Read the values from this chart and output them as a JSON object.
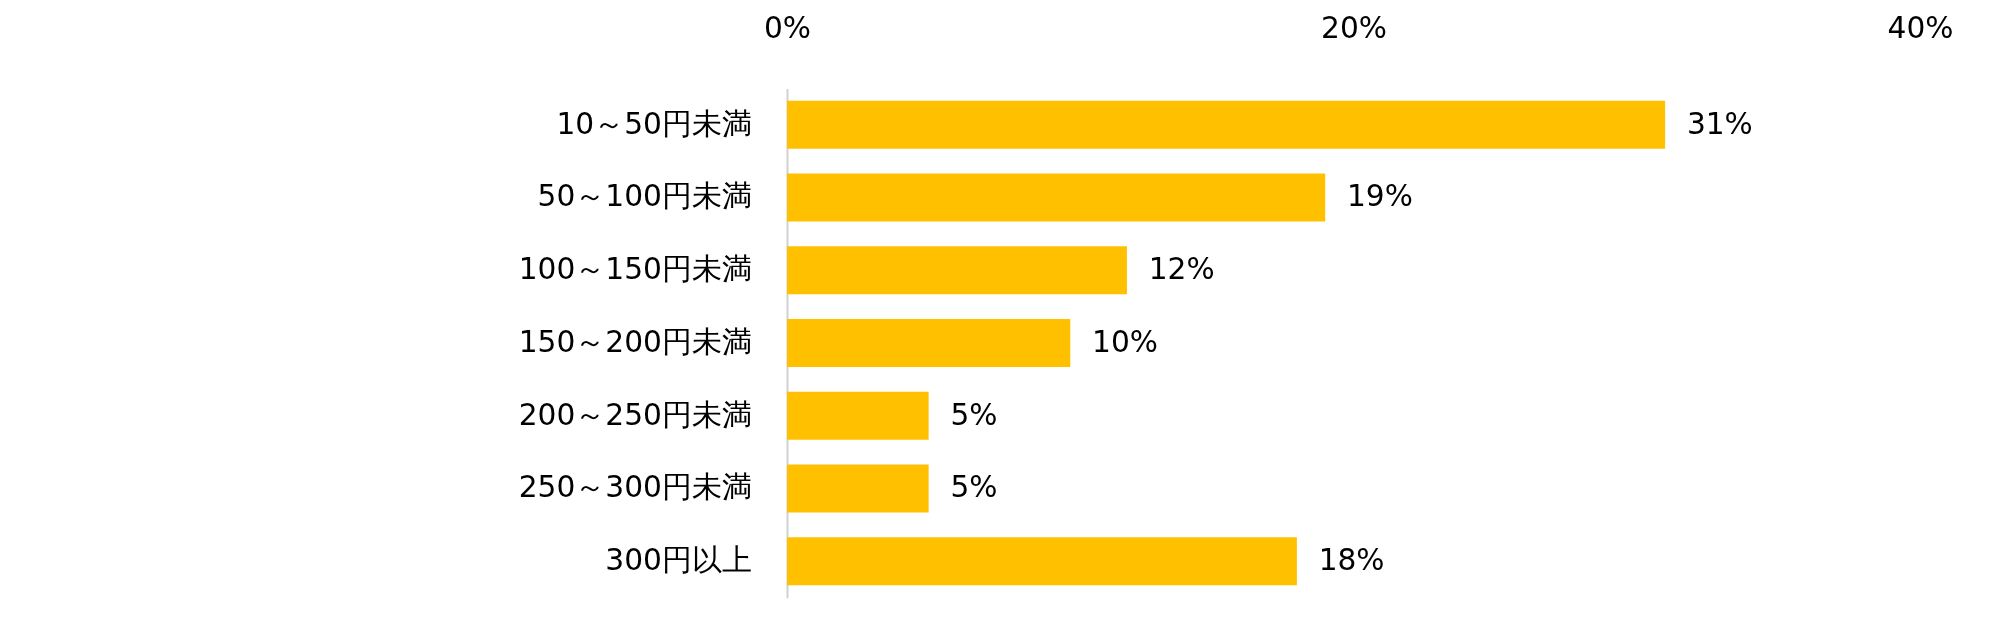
{
  "chart_data": {
    "type": "bar",
    "orientation": "horizontal",
    "categories": [
      "10～50円未満",
      "50～100円未満",
      "100～150円未満",
      "150～200円未満",
      "200～250円未満",
      "250～300円未満",
      "300円以上"
    ],
    "values": [
      31,
      19,
      12,
      10,
      5,
      5,
      18
    ],
    "value_labels": [
      "31%",
      "19%",
      "12%",
      "10%",
      "5%",
      "5%",
      "18%"
    ],
    "color": "#ffc000",
    "xlim": [
      0,
      40
    ],
    "xticks": [
      {
        "value": 0,
        "label": "0%"
      },
      {
        "value": 20,
        "label": "20%"
      },
      {
        "value": 40,
        "label": "40%"
      }
    ],
    "grid": false
  }
}
